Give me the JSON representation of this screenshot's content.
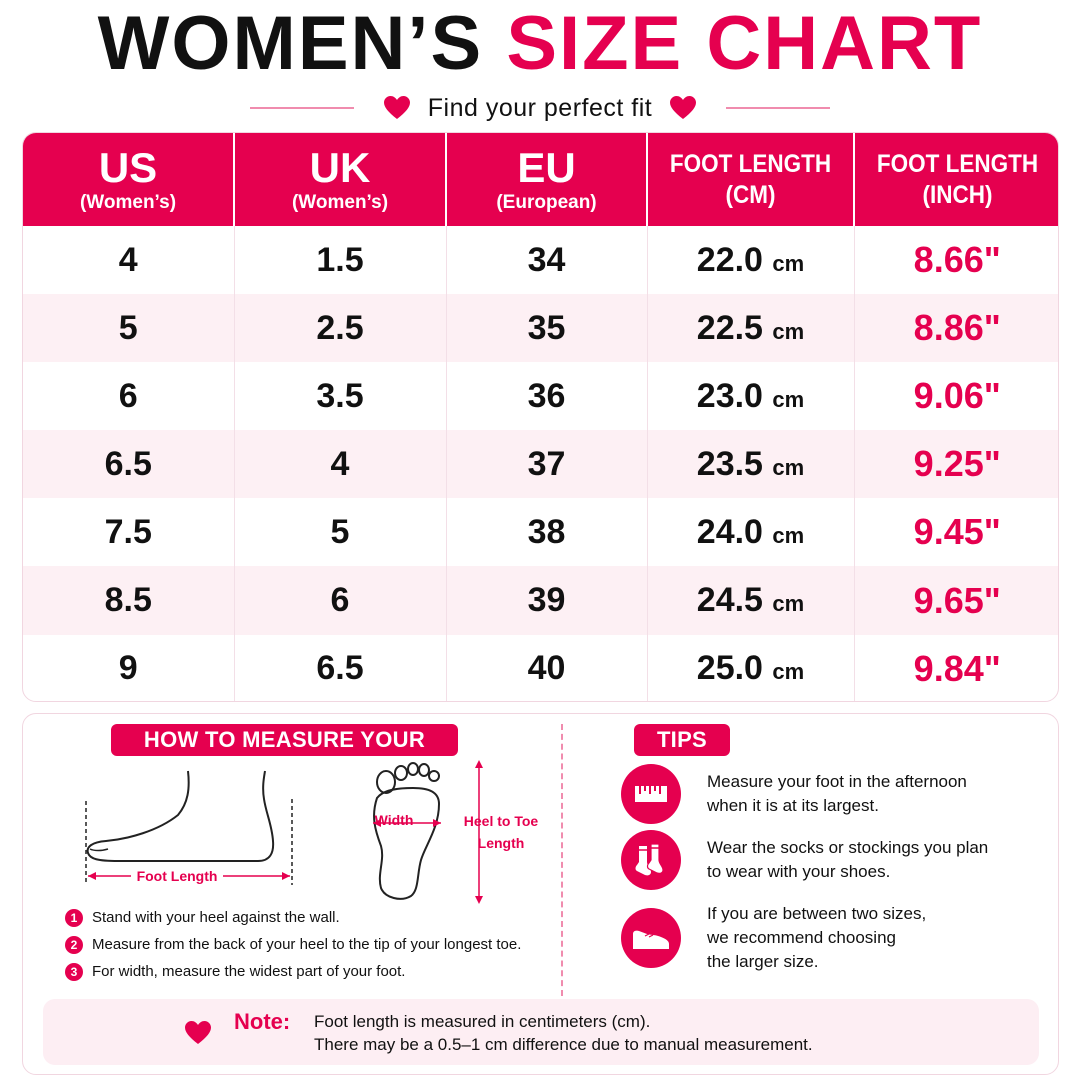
{
  "header": {
    "title_black": "WOMEN’S",
    "title_pink": "SIZE CHART",
    "subtitle": "Find your perfect fit",
    "accent_color": "#e5004f"
  },
  "table": {
    "headers": [
      {
        "main": "US",
        "sub": "(Women’s)"
      },
      {
        "main": "UK",
        "sub": "(Women’s)"
      },
      {
        "main": "EU",
        "sub": "(European)"
      },
      {
        "main": "FOOT LENGTH",
        "sub": "(CM)"
      },
      {
        "main": "FOOT LENGTH",
        "sub": "(INCH)"
      }
    ],
    "unit_cm": "cm",
    "rows": [
      {
        "us": "4",
        "uk": "1.5",
        "eu": "34",
        "cm": "22.0",
        "inch": "8.66\""
      },
      {
        "us": "5",
        "uk": "2.5",
        "eu": "35",
        "cm": "22.5",
        "inch": "8.86\""
      },
      {
        "us": "6",
        "uk": "3.5",
        "eu": "36",
        "cm": "23.0",
        "inch": "9.06\""
      },
      {
        "us": "6.5",
        "uk": "4",
        "eu": "37",
        "cm": "23.5",
        "inch": "9.25\""
      },
      {
        "us": "7.5",
        "uk": "5",
        "eu": "38",
        "cm": "24.0",
        "inch": "9.45\""
      },
      {
        "us": "8.5",
        "uk": "6",
        "eu": "39",
        "cm": "24.5",
        "inch": "9.65\""
      },
      {
        "us": "9",
        "uk": "6.5",
        "eu": "40",
        "cm": "25.0",
        "inch": "9.84\""
      }
    ]
  },
  "measure": {
    "title": "HOW TO MEASURE YOUR FOOT",
    "foot_length_label": "Foot Length",
    "width_label": "Width",
    "heel_to_toe_label": "Heel to Toe\nLength",
    "steps": [
      {
        "num": "1",
        "text": "Stand with your heel against the wall."
      },
      {
        "num": "2",
        "text": "Measure from the back of your heel to the tip of your longest toe."
      },
      {
        "num": "3",
        "text": "For width, measure the widest part of your foot."
      }
    ]
  },
  "tips": {
    "title": "TIPS",
    "items": [
      {
        "icon": "ruler-icon",
        "text": "Measure your foot in the afternoon\nwhen it is at its largest."
      },
      {
        "icon": "socks-icon",
        "text": "Wear the socks or stockings you plan\nto wear with your shoes."
      },
      {
        "icon": "shoe-icon",
        "text": "If you are between two sizes,\nwe recommend choosing\nthe larger size."
      }
    ]
  },
  "note": {
    "label": "Note:",
    "text": "Foot length is measured in centimeters (cm).\nThere may be a 0.5–1 cm difference due to manual measurement."
  }
}
